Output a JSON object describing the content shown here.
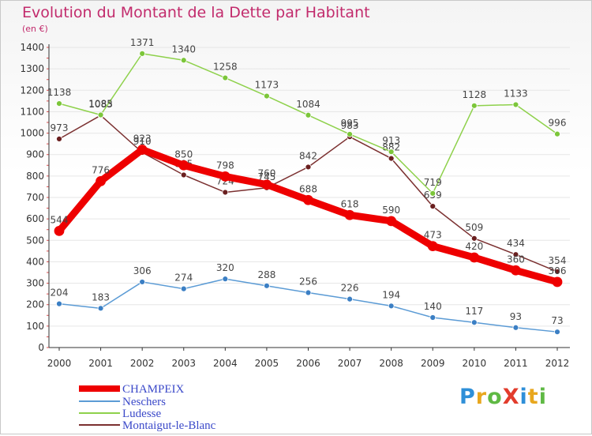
{
  "title": "Evolution du Montant de la Dette par Habitant",
  "unit": "(en €)",
  "logo_text": "ProXiti",
  "chart_data": {
    "type": "line",
    "title": "Evolution du Montant de la Dette par Habitant",
    "ylabel": "(en €)",
    "xlabel": "",
    "x": [
      "2000",
      "2001",
      "2002",
      "2003",
      "2004",
      "2005",
      "2006",
      "2007",
      "2008",
      "2009",
      "2010",
      "2011",
      "2012"
    ],
    "ylim": [
      0,
      1400
    ],
    "yticks": [
      0,
      100,
      200,
      300,
      400,
      500,
      600,
      700,
      800,
      900,
      1000,
      1100,
      1200,
      1300,
      1400
    ],
    "grid": true,
    "legend_position": "bottom-left",
    "series": [
      {
        "name": "CHAMPEIX",
        "color": "#ee0000",
        "values": [
          544,
          776,
          923,
          850,
          798,
          760,
          688,
          618,
          590,
          473,
          420,
          360,
          306
        ]
      },
      {
        "name": "Neschers",
        "color": "#5b9bd5",
        "values": [
          204,
          183,
          306,
          274,
          320,
          288,
          256,
          226,
          194,
          140,
          117,
          93,
          73
        ]
      },
      {
        "name": "Ludesse",
        "color": "#8ed14b",
        "values": [
          1138,
          1085,
          1371,
          1340,
          1258,
          1173,
          1084,
          995,
          913,
          719,
          1128,
          1133,
          996
        ]
      },
      {
        "name": "Montaigut-le-Blanc",
        "color": "#7b3030",
        "values": [
          973,
          1083,
          910,
          805,
          724,
          745,
          842,
          983,
          882,
          659,
          509,
          434,
          354
        ]
      }
    ]
  }
}
